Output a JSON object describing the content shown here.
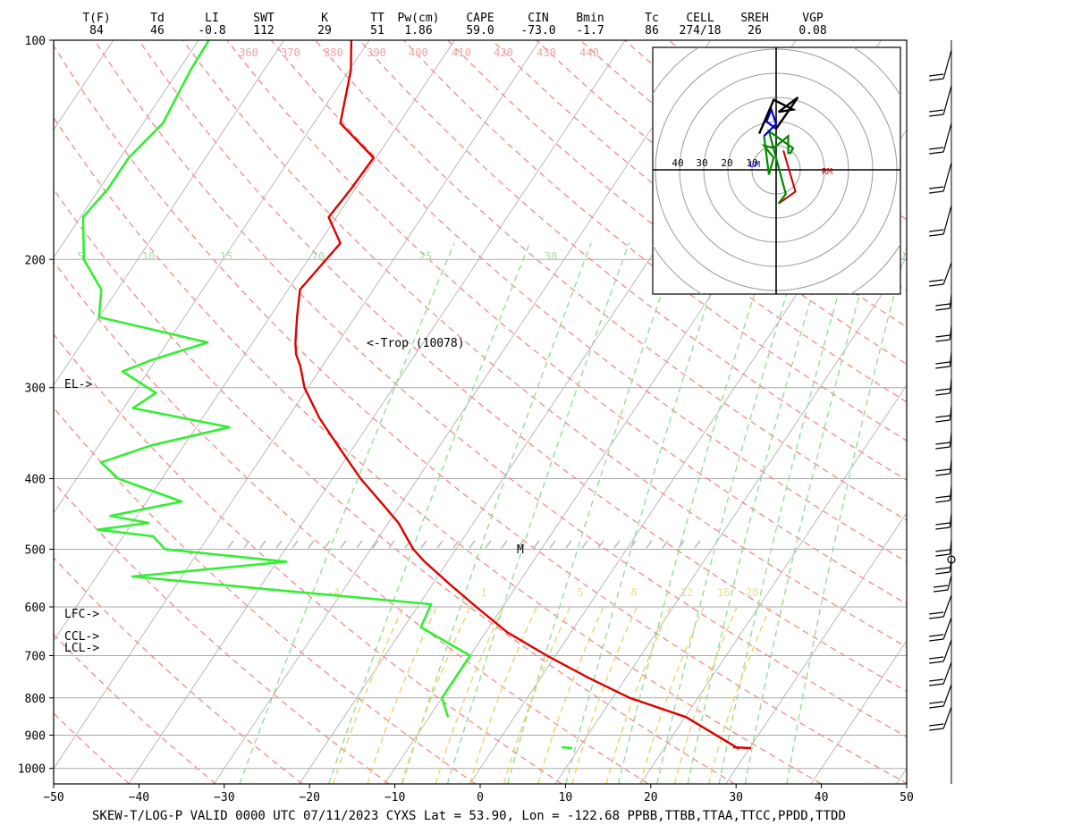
{
  "indices": [
    {
      "label": "T(F)",
      "value": "84"
    },
    {
      "label": "Td",
      "value": "46"
    },
    {
      "label": "LI",
      "value": "-0.8"
    },
    {
      "label": "SWT",
      "value": "112"
    },
    {
      "label": "K",
      "value": "29"
    },
    {
      "label": "TT",
      "value": "51"
    },
    {
      "label": "Pw(cm)",
      "value": "1.86"
    },
    {
      "label": "CAPE",
      "value": "59.0"
    },
    {
      "label": "CIN",
      "value": "-73.0"
    },
    {
      "label": "Bmin",
      "value": "-1.7"
    },
    {
      "label": "Tc",
      "value": "86"
    },
    {
      "label": "CELL",
      "value": "274/18"
    },
    {
      "label": "SREH",
      "value": "26"
    },
    {
      "label": "VGP",
      "value": "0.08"
    }
  ],
  "footer": "SKEW-T/LOG-P  VALID 0000 UTC 07/11/2023   CYXS    Lat = 53.90, Lon = -122.68    PPBB,TTBB,TTAA,TTCC,PPDD,TTDD",
  "colors": {
    "temperature": "#dd0000",
    "dewpoint": "#33ee33",
    "dry_adiabat": "#f08a8a",
    "mixing_ratio": "#8edb8e",
    "moist_adiabat": "#e8d060",
    "isotherm": "#aaaaaa",
    "hodo_0_3km": "#008800",
    "hodo_3_6km": "#0000cc",
    "hodo_upper": "#000000",
    "storm_motion": "#cc0000"
  },
  "chart_data": {
    "type": "line",
    "title": "",
    "xlabel": "",
    "ylabel": "",
    "xlim": [
      -50,
      50
    ],
    "ylim": [
      1050,
      100
    ],
    "y_scale": "log",
    "x_ticks": [
      -50,
      -40,
      -30,
      -20,
      -10,
      0,
      10,
      20,
      30,
      40,
      50
    ],
    "y_ticks": [
      100,
      200,
      300,
      400,
      500,
      600,
      700,
      800,
      900,
      1000
    ],
    "series": [
      {
        "role": "temperature",
        "points": [
          [
            100,
            -72.1
          ],
          [
            110,
            -69.8
          ],
          [
            130,
            -66.9
          ],
          [
            145,
            -60.3
          ],
          [
            160,
            -60.5
          ],
          [
            175,
            -60.9
          ],
          [
            190,
            -57.5
          ],
          [
            220,
            -58.6
          ],
          [
            240,
            -56.8
          ],
          [
            260,
            -55.0
          ],
          [
            270,
            -54.0
          ],
          [
            280,
            -52.6
          ],
          [
            300,
            -50.4
          ],
          [
            330,
            -46.3
          ],
          [
            360,
            -42.0
          ],
          [
            400,
            -36.7
          ],
          [
            440,
            -31.3
          ],
          [
            460,
            -28.8
          ],
          [
            500,
            -25.0
          ],
          [
            520,
            -22.7
          ],
          [
            560,
            -17.8
          ],
          [
            600,
            -13.1
          ],
          [
            650,
            -7.5
          ],
          [
            700,
            -1.0
          ],
          [
            750,
            5.5
          ],
          [
            800,
            12.0
          ],
          [
            850,
            20.1
          ],
          [
            940,
            28.8
          ]
        ]
      },
      {
        "role": "dewpoint",
        "points": [
          [
            100,
            -88.8
          ],
          [
            110,
            -88.6
          ],
          [
            130,
            -87.7
          ],
          [
            145,
            -89.0
          ],
          [
            160,
            -89.0
          ],
          [
            175,
            -89.7
          ],
          [
            200,
            -86.3
          ],
          [
            220,
            -81.9
          ],
          [
            240,
            -80.0
          ],
          [
            260,
            -65.3
          ],
          [
            275,
            -70.5
          ],
          [
            285,
            -73.0
          ],
          [
            305,
            -67.4
          ],
          [
            320,
            -68.9
          ],
          [
            340,
            -56.1
          ],
          [
            360,
            -63.8
          ],
          [
            380,
            -68.4
          ],
          [
            400,
            -65.1
          ],
          [
            430,
            -55.9
          ],
          [
            450,
            -63.1
          ],
          [
            460,
            -58.1
          ],
          [
            470,
            -63.5
          ],
          [
            480,
            -56.5
          ],
          [
            500,
            -54.1
          ],
          [
            520,
            -38.9
          ],
          [
            545,
            -55.8
          ],
          [
            570,
            -37.1
          ],
          [
            595,
            -18.6
          ],
          [
            640,
            -18.0
          ],
          [
            700,
            -10.0
          ],
          [
            750,
            -10.0
          ],
          [
            800,
            -10.0
          ],
          [
            850,
            -7.8
          ]
        ]
      }
    ],
    "annotations": [
      {
        "text": "<-Trop (10078)",
        "p": 265
      },
      {
        "text": "EL->",
        "p": 300
      },
      {
        "text": "LFC->",
        "p": 610
      },
      {
        "text": "CCL->",
        "p": 668
      },
      {
        "text": "LCL->",
        "p": 687
      },
      {
        "text": "M",
        "p": 500
      }
    ],
    "dry_adiabat_labels": [
      "360",
      "370",
      "380",
      "390",
      "400",
      "410",
      "420",
      "430",
      "440"
    ],
    "mixing_ratio_labels": [
      "5",
      "10",
      "15",
      "20",
      "25",
      "30"
    ],
    "moist_adiabat_labels": [
      "-4",
      "1",
      "5",
      "8",
      "12",
      "16",
      "20"
    ],
    "hodograph": {
      "ring_labels": [
        "40",
        "30",
        "20",
        "10"
      ],
      "labels": [
        "LM",
        "RM"
      ],
      "segments": {
        "low": [
          [
            1,
            -14
          ],
          [
            4,
            -10
          ],
          [
            -3,
            16
          ],
          [
            7,
            9
          ],
          [
            6,
            7
          ],
          [
            5,
            7
          ],
          [
            5,
            14
          ],
          [
            -1,
            9
          ],
          [
            -5,
            10
          ],
          [
            -1,
            5
          ],
          [
            -3,
            -2
          ],
          [
            -5,
            14
          ]
        ],
        "mid": [
          [
            -5,
            14
          ],
          [
            0,
            19
          ],
          [
            -2,
            25
          ],
          [
            -4,
            20
          ],
          [
            0,
            17
          ]
        ],
        "upper": [
          [
            0,
            17
          ],
          [
            9,
            30
          ],
          [
            1,
            24
          ],
          [
            7,
            25
          ],
          [
            -1,
            29
          ],
          [
            -7,
            15
          ]
        ]
      },
      "rm_vector": [
        [
          1,
          -14
        ],
        [
          8,
          -9
        ],
        [
          3,
          8
        ]
      ]
    },
    "wind_barbs_note": "right-side wind barb column"
  }
}
